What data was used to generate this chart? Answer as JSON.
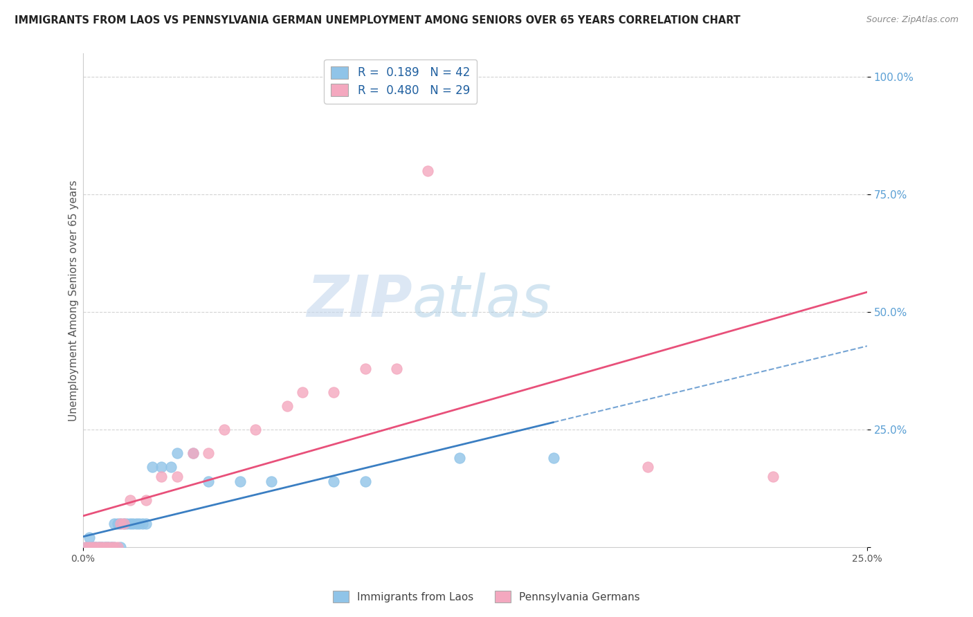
{
  "title": "IMMIGRANTS FROM LAOS VS PENNSYLVANIA GERMAN UNEMPLOYMENT AMONG SENIORS OVER 65 YEARS CORRELATION CHART",
  "source": "Source: ZipAtlas.com",
  "ylabel": "Unemployment Among Seniors over 65 years",
  "xlim": [
    0.0,
    0.25
  ],
  "ylim": [
    0.0,
    1.05
  ],
  "xticklabels": [
    "0.0%",
    "25.0%"
  ],
  "yticklabels_right": [
    "",
    "25.0%",
    "50.0%",
    "75.0%",
    "100.0%"
  ],
  "legend1_label": "R =  0.189   N = 42",
  "legend2_label": "R =  0.480   N = 29",
  "legend_series1": "Immigrants from Laos",
  "legend_series2": "Pennsylvania Germans",
  "blue_color": "#90c4e8",
  "pink_color": "#f4a8bf",
  "blue_line_color": "#3a7ec2",
  "pink_line_color": "#e8507a",
  "blue_x": [
    0.001,
    0.002,
    0.002,
    0.003,
    0.003,
    0.004,
    0.004,
    0.005,
    0.005,
    0.006,
    0.006,
    0.007,
    0.007,
    0.008,
    0.008,
    0.009,
    0.009,
    0.01,
    0.01,
    0.011,
    0.012,
    0.012,
    0.013,
    0.014,
    0.015,
    0.016,
    0.017,
    0.018,
    0.019,
    0.02,
    0.022,
    0.025,
    0.028,
    0.03,
    0.035,
    0.04,
    0.05,
    0.06,
    0.08,
    0.09,
    0.12,
    0.15
  ],
  "blue_y": [
    0.0,
    0.0,
    0.02,
    0.0,
    0.0,
    0.0,
    0.0,
    0.0,
    0.0,
    0.0,
    0.0,
    0.0,
    0.0,
    0.0,
    0.0,
    0.0,
    0.0,
    0.0,
    0.05,
    0.05,
    0.05,
    0.0,
    0.05,
    0.05,
    0.05,
    0.05,
    0.05,
    0.05,
    0.05,
    0.05,
    0.17,
    0.17,
    0.17,
    0.2,
    0.2,
    0.14,
    0.14,
    0.14,
    0.14,
    0.14,
    0.19,
    0.19
  ],
  "pink_x": [
    0.001,
    0.002,
    0.003,
    0.004,
    0.005,
    0.006,
    0.007,
    0.008,
    0.009,
    0.01,
    0.011,
    0.012,
    0.013,
    0.015,
    0.02,
    0.025,
    0.03,
    0.035,
    0.04,
    0.045,
    0.055,
    0.065,
    0.07,
    0.08,
    0.09,
    0.1,
    0.11,
    0.18,
    0.22
  ],
  "pink_y": [
    0.0,
    0.0,
    0.0,
    0.0,
    0.0,
    0.0,
    0.0,
    0.0,
    0.0,
    0.0,
    0.0,
    0.05,
    0.05,
    0.1,
    0.1,
    0.15,
    0.15,
    0.2,
    0.2,
    0.25,
    0.25,
    0.3,
    0.33,
    0.33,
    0.38,
    0.38,
    0.8,
    0.17,
    0.15
  ],
  "watermark_zip": "ZIP",
  "watermark_atlas": "atlas",
  "background_color": "#ffffff",
  "grid_color": "#c8c8c8"
}
